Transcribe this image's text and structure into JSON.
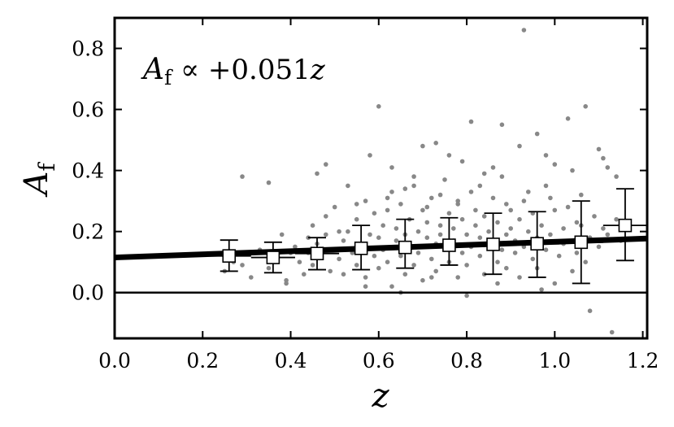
{
  "chart_data": {
    "type": "scatter",
    "xlabel": "z",
    "ylabel": "A",
    "ylabel_sub": "f",
    "xlim": [
      0.0,
      1.21
    ],
    "ylim": [
      -0.15,
      0.9
    ],
    "xticks": [
      0.0,
      0.2,
      0.4,
      0.6,
      0.8,
      1.0,
      1.2
    ],
    "xtick_labels": [
      "0.0",
      "0.2",
      "0.4",
      "0.6",
      "0.8",
      "1.0",
      "1.2"
    ],
    "yticks": [
      0.0,
      0.2,
      0.4,
      0.6,
      0.8
    ],
    "ytick_labels": [
      "0.0",
      "0.2",
      "0.4",
      "0.6",
      "0.8"
    ],
    "grid": false,
    "annotation": {
      "symbol": "A",
      "sub": "f",
      "relation": " ∝ +0.051",
      "variable": "z"
    },
    "reference_line": {
      "y": 0.0
    },
    "fit_line": {
      "x": [
        0.0,
        1.21
      ],
      "y": [
        0.115,
        0.177
      ]
    },
    "colors": {
      "points": "#888888",
      "fit": "#000000",
      "binned_marker_fill": "#ffffff",
      "binned_marker_edge": "#000000"
    },
    "binned": {
      "x": [
        0.26,
        0.36,
        0.46,
        0.56,
        0.66,
        0.76,
        0.86,
        0.96,
        1.06,
        1.16
      ],
      "y": [
        0.12,
        0.115,
        0.128,
        0.145,
        0.148,
        0.155,
        0.158,
        0.16,
        0.165,
        0.22
      ],
      "y_low": [
        0.07,
        0.065,
        0.075,
        0.075,
        0.08,
        0.09,
        0.06,
        0.05,
        0.03,
        0.105
      ],
      "y_high": [
        0.172,
        0.165,
        0.18,
        0.22,
        0.24,
        0.245,
        0.26,
        0.265,
        0.3,
        0.34
      ],
      "x_halfwidth": 0.05
    },
    "scatter": {
      "x": [
        0.25,
        0.27,
        0.29,
        0.31,
        0.33,
        0.35,
        0.36,
        0.38,
        0.39,
        0.4,
        0.41,
        0.42,
        0.43,
        0.44,
        0.45,
        0.45,
        0.46,
        0.47,
        0.48,
        0.48,
        0.49,
        0.5,
        0.5,
        0.51,
        0.52,
        0.52,
        0.53,
        0.54,
        0.55,
        0.55,
        0.56,
        0.57,
        0.57,
        0.58,
        0.59,
        0.59,
        0.6,
        0.6,
        0.61,
        0.61,
        0.62,
        0.62,
        0.63,
        0.63,
        0.64,
        0.64,
        0.65,
        0.65,
        0.66,
        0.66,
        0.67,
        0.67,
        0.68,
        0.68,
        0.69,
        0.69,
        0.7,
        0.7,
        0.71,
        0.71,
        0.72,
        0.72,
        0.73,
        0.73,
        0.74,
        0.74,
        0.75,
        0.75,
        0.76,
        0.76,
        0.77,
        0.77,
        0.78,
        0.78,
        0.79,
        0.79,
        0.8,
        0.8,
        0.81,
        0.81,
        0.82,
        0.82,
        0.83,
        0.83,
        0.84,
        0.84,
        0.85,
        0.85,
        0.86,
        0.87,
        0.87,
        0.88,
        0.88,
        0.89,
        0.89,
        0.9,
        0.9,
        0.91,
        0.91,
        0.92,
        0.92,
        0.93,
        0.93,
        0.94,
        0.95,
        0.95,
        0.96,
        0.96,
        0.97,
        0.98,
        0.98,
        0.99,
        1.0,
        1.0,
        1.01,
        1.02,
        1.02,
        1.03,
        1.04,
        1.05,
        1.05,
        1.06,
        1.07,
        1.08,
        1.09,
        1.1,
        1.11,
        1.12,
        1.14,
        1.15,
        0.29,
        0.35,
        0.39,
        0.46,
        0.48,
        0.53,
        0.58,
        0.6,
        0.63,
        0.68,
        0.7,
        0.73,
        0.76,
        0.79,
        0.81,
        0.84,
        0.86,
        0.88,
        0.92,
        0.93,
        0.96,
        0.98,
        1.0,
        1.03,
        1.04,
        1.07,
        1.1,
        1.11,
        1.12,
        1.14,
        0.44,
        0.51,
        0.55,
        0.62,
        0.66,
        0.71,
        0.74,
        0.78,
        0.83,
        0.89,
        0.94,
        0.99,
        1.06,
        0.57,
        0.65,
        0.72,
        0.8,
        0.87,
        0.97,
        1.08,
        1.13
      ],
      "y": [
        0.07,
        0.1,
        0.09,
        0.05,
        0.14,
        0.08,
        0.11,
        0.19,
        0.04,
        0.13,
        0.15,
        0.1,
        0.06,
        0.18,
        0.22,
        0.09,
        0.16,
        0.12,
        0.19,
        0.25,
        0.07,
        0.14,
        0.28,
        0.11,
        0.17,
        0.06,
        0.2,
        0.13,
        0.24,
        0.09,
        0.16,
        0.3,
        0.05,
        0.19,
        0.12,
        0.26,
        0.08,
        0.18,
        0.22,
        0.14,
        0.27,
        0.1,
        0.33,
        0.02,
        0.17,
        0.21,
        0.12,
        0.29,
        0.06,
        0.19,
        0.24,
        0.15,
        0.35,
        0.09,
        0.2,
        0.13,
        0.27,
        0.04,
        0.18,
        0.23,
        0.11,
        0.31,
        0.16,
        0.07,
        0.22,
        0.19,
        0.14,
        0.37,
        0.26,
        0.1,
        0.21,
        0.17,
        0.05,
        0.29,
        0.13,
        0.24,
        0.19,
        0.09,
        0.33,
        0.15,
        0.22,
        0.27,
        0.12,
        0.18,
        0.06,
        0.25,
        0.2,
        0.16,
        0.31,
        0.1,
        0.23,
        0.14,
        0.38,
        0.19,
        0.08,
        0.27,
        0.21,
        0.13,
        0.17,
        0.24,
        0.05,
        0.3,
        0.15,
        0.2,
        0.11,
        0.26,
        0.18,
        0.08,
        0.22,
        0.35,
        0.14,
        0.19,
        0.03,
        0.27,
        0.12,
        0.21,
        0.16,
        0.28,
        0.07,
        0.23,
        0.13,
        0.32,
        0.1,
        0.18,
        0.25,
        0.15,
        0.21,
        0.19,
        0.24,
        0.17,
        0.38,
        0.36,
        0.03,
        0.39,
        0.42,
        0.35,
        0.45,
        0.61,
        0.41,
        0.38,
        0.48,
        0.49,
        0.45,
        0.43,
        0.56,
        0.39,
        0.41,
        0.55,
        0.48,
        0.86,
        0.52,
        0.45,
        0.42,
        0.57,
        0.4,
        0.61,
        0.47,
        0.44,
        0.41,
        0.38,
        0.13,
        0.2,
        0.29,
        0.31,
        0.34,
        0.28,
        0.32,
        0.3,
        0.35,
        0.29,
        0.33,
        0.31,
        0.22,
        0.02,
        0.0,
        0.05,
        -0.01,
        0.03,
        0.01,
        -0.06,
        -0.13
      ]
    }
  }
}
